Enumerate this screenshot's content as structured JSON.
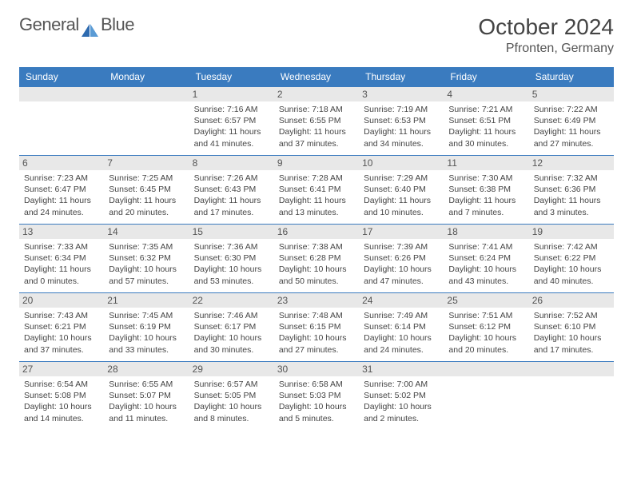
{
  "brand": {
    "part1": "General",
    "part2": "Blue"
  },
  "title": "October 2024",
  "location": "Pfronten, Germany",
  "colors": {
    "header_bg": "#3a7bbf",
    "header_fg": "#ffffff",
    "daynum_bg": "#e8e8e8",
    "border": "#3a7bbf",
    "text": "#444444"
  },
  "weekdays": [
    "Sunday",
    "Monday",
    "Tuesday",
    "Wednesday",
    "Thursday",
    "Friday",
    "Saturday"
  ],
  "grid": {
    "rows": 5,
    "cols": 7,
    "first_day_col": 2,
    "last_day": 31
  },
  "days": [
    {
      "n": 1,
      "sr": "7:16 AM",
      "ss": "6:57 PM",
      "dl": "11 hours and 41 minutes."
    },
    {
      "n": 2,
      "sr": "7:18 AM",
      "ss": "6:55 PM",
      "dl": "11 hours and 37 minutes."
    },
    {
      "n": 3,
      "sr": "7:19 AM",
      "ss": "6:53 PM",
      "dl": "11 hours and 34 minutes."
    },
    {
      "n": 4,
      "sr": "7:21 AM",
      "ss": "6:51 PM",
      "dl": "11 hours and 30 minutes."
    },
    {
      "n": 5,
      "sr": "7:22 AM",
      "ss": "6:49 PM",
      "dl": "11 hours and 27 minutes."
    },
    {
      "n": 6,
      "sr": "7:23 AM",
      "ss": "6:47 PM",
      "dl": "11 hours and 24 minutes."
    },
    {
      "n": 7,
      "sr": "7:25 AM",
      "ss": "6:45 PM",
      "dl": "11 hours and 20 minutes."
    },
    {
      "n": 8,
      "sr": "7:26 AM",
      "ss": "6:43 PM",
      "dl": "11 hours and 17 minutes."
    },
    {
      "n": 9,
      "sr": "7:28 AM",
      "ss": "6:41 PM",
      "dl": "11 hours and 13 minutes."
    },
    {
      "n": 10,
      "sr": "7:29 AM",
      "ss": "6:40 PM",
      "dl": "11 hours and 10 minutes."
    },
    {
      "n": 11,
      "sr": "7:30 AM",
      "ss": "6:38 PM",
      "dl": "11 hours and 7 minutes."
    },
    {
      "n": 12,
      "sr": "7:32 AM",
      "ss": "6:36 PM",
      "dl": "11 hours and 3 minutes."
    },
    {
      "n": 13,
      "sr": "7:33 AM",
      "ss": "6:34 PM",
      "dl": "11 hours and 0 minutes."
    },
    {
      "n": 14,
      "sr": "7:35 AM",
      "ss": "6:32 PM",
      "dl": "10 hours and 57 minutes."
    },
    {
      "n": 15,
      "sr": "7:36 AM",
      "ss": "6:30 PM",
      "dl": "10 hours and 53 minutes."
    },
    {
      "n": 16,
      "sr": "7:38 AM",
      "ss": "6:28 PM",
      "dl": "10 hours and 50 minutes."
    },
    {
      "n": 17,
      "sr": "7:39 AM",
      "ss": "6:26 PM",
      "dl": "10 hours and 47 minutes."
    },
    {
      "n": 18,
      "sr": "7:41 AM",
      "ss": "6:24 PM",
      "dl": "10 hours and 43 minutes."
    },
    {
      "n": 19,
      "sr": "7:42 AM",
      "ss": "6:22 PM",
      "dl": "10 hours and 40 minutes."
    },
    {
      "n": 20,
      "sr": "7:43 AM",
      "ss": "6:21 PM",
      "dl": "10 hours and 37 minutes."
    },
    {
      "n": 21,
      "sr": "7:45 AM",
      "ss": "6:19 PM",
      "dl": "10 hours and 33 minutes."
    },
    {
      "n": 22,
      "sr": "7:46 AM",
      "ss": "6:17 PM",
      "dl": "10 hours and 30 minutes."
    },
    {
      "n": 23,
      "sr": "7:48 AM",
      "ss": "6:15 PM",
      "dl": "10 hours and 27 minutes."
    },
    {
      "n": 24,
      "sr": "7:49 AM",
      "ss": "6:14 PM",
      "dl": "10 hours and 24 minutes."
    },
    {
      "n": 25,
      "sr": "7:51 AM",
      "ss": "6:12 PM",
      "dl": "10 hours and 20 minutes."
    },
    {
      "n": 26,
      "sr": "7:52 AM",
      "ss": "6:10 PM",
      "dl": "10 hours and 17 minutes."
    },
    {
      "n": 27,
      "sr": "6:54 AM",
      "ss": "5:08 PM",
      "dl": "10 hours and 14 minutes."
    },
    {
      "n": 28,
      "sr": "6:55 AM",
      "ss": "5:07 PM",
      "dl": "10 hours and 11 minutes."
    },
    {
      "n": 29,
      "sr": "6:57 AM",
      "ss": "5:05 PM",
      "dl": "10 hours and 8 minutes."
    },
    {
      "n": 30,
      "sr": "6:58 AM",
      "ss": "5:03 PM",
      "dl": "10 hours and 5 minutes."
    },
    {
      "n": 31,
      "sr": "7:00 AM",
      "ss": "5:02 PM",
      "dl": "10 hours and 2 minutes."
    }
  ],
  "labels": {
    "sunrise": "Sunrise:",
    "sunset": "Sunset:",
    "daylight": "Daylight:"
  }
}
